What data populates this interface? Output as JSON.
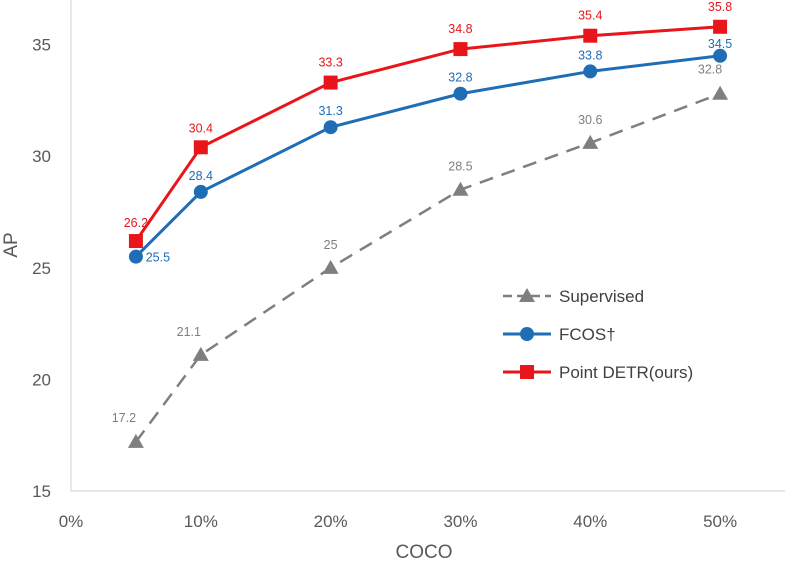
{
  "chart_data": {
    "type": "line",
    "title": "",
    "xlabel": "COCO",
    "ylabel": "AP",
    "x": [
      5,
      10,
      20,
      30,
      40,
      50
    ],
    "xlim": [
      0,
      55
    ],
    "ylim": [
      15,
      37
    ],
    "xticks": [
      0,
      10,
      20,
      30,
      40,
      50
    ],
    "xtick_labels": [
      "0%",
      "10%",
      "20%",
      "30%",
      "40%",
      "50%"
    ],
    "yticks": [
      15,
      20,
      25,
      30,
      35
    ],
    "ytick_labels": [
      "15",
      "20",
      "25",
      "30",
      "35"
    ],
    "grid": false,
    "legend_position": "bottom-right",
    "series": [
      {
        "name": "Supervised",
        "values": [
          17.2,
          21.1,
          25,
          28.5,
          30.6,
          32.8
        ],
        "labels": [
          "17.2",
          "21.1",
          "25",
          "28.5",
          "30.6",
          "32.8"
        ],
        "color": "#7f7f7f",
        "marker": "triangle",
        "dash": true
      },
      {
        "name": "FCOS†",
        "values": [
          25.5,
          28.4,
          31.3,
          32.8,
          33.8,
          34.5
        ],
        "labels": [
          "25.5",
          "28.4",
          "31.3",
          "32.8",
          "33.8",
          "34.5"
        ],
        "color": "#1f6eb5",
        "marker": "circle",
        "dash": false
      },
      {
        "name": "Point DETR(ours)",
        "values": [
          26.2,
          30.4,
          33.3,
          34.8,
          35.4,
          35.8
        ],
        "labels": [
          "26.2",
          "30.4",
          "33.3",
          "34.8",
          "35.4",
          "35.8"
        ],
        "color": "#e8161b",
        "marker": "square",
        "dash": false
      }
    ]
  }
}
